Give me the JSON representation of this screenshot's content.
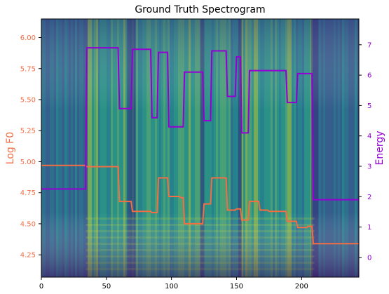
{
  "chart_data": {
    "type": "line",
    "title": "Ground Truth Spectrogram",
    "background": "spectrogram heatmap (viridis colormap)",
    "x_axis": {
      "ticks": [
        0,
        50,
        100,
        150,
        200
      ],
      "xlim": [
        0,
        244
      ]
    },
    "y_left": {
      "label": "Log F0",
      "color": "#f46d43",
      "ticks": [
        "4.25",
        "4.50",
        "4.75",
        "5.00",
        "5.25",
        "5.50",
        "5.75",
        "6.00"
      ],
      "ylim": [
        4.07,
        6.15
      ]
    },
    "y_right": {
      "label": "Energy",
      "color": "#9400d3",
      "ticks": [
        "0",
        "1",
        "2",
        "3",
        "4",
        "5",
        "6",
        "7"
      ],
      "ylim": [
        -0.65,
        7.85
      ]
    },
    "series": [
      {
        "axis": "left",
        "color": "#f46d43",
        "x": [
          0,
          34,
          35,
          59,
          60,
          69,
          70,
          84,
          85,
          89,
          90,
          97,
          98,
          106,
          107,
          109,
          110,
          124,
          125,
          130,
          131,
          142,
          143,
          149,
          150,
          153,
          154,
          159,
          160,
          167,
          168,
          174,
          175,
          188,
          189,
          196,
          197,
          204,
          205,
          208,
          209,
          244
        ],
        "values": [
          4.97,
          4.97,
          4.96,
          4.96,
          4.68,
          4.68,
          4.6,
          4.6,
          4.59,
          4.59,
          4.87,
          4.87,
          4.72,
          4.72,
          4.71,
          4.71,
          4.5,
          4.5,
          4.66,
          4.66,
          4.87,
          4.87,
          4.61,
          4.61,
          4.62,
          4.62,
          4.53,
          4.53,
          4.68,
          4.68,
          4.61,
          4.61,
          4.6,
          4.6,
          4.52,
          4.52,
          4.47,
          4.47,
          4.48,
          4.48,
          4.34,
          4.34
        ]
      },
      {
        "axis": "right",
        "color": "#9400d3",
        "x": [
          0,
          34,
          35,
          59,
          60,
          69,
          70,
          84,
          85,
          89,
          90,
          97,
          98,
          106,
          107,
          109,
          110,
          124,
          125,
          130,
          131,
          142,
          143,
          149,
          150,
          153,
          154,
          159,
          160,
          167,
          168,
          174,
          175,
          188,
          189,
          196,
          197,
          204,
          205,
          208,
          209,
          244
        ],
        "values": [
          2.25,
          2.25,
          6.9,
          6.9,
          4.9,
          4.9,
          6.85,
          6.85,
          4.6,
          4.6,
          6.75,
          6.75,
          4.3,
          4.3,
          4.3,
          4.3,
          6.1,
          6.1,
          4.5,
          4.5,
          6.8,
          6.8,
          5.3,
          5.3,
          6.6,
          6.6,
          4.1,
          4.1,
          6.15,
          6.15,
          6.15,
          6.15,
          6.15,
          6.15,
          5.1,
          5.1,
          6.05,
          6.05,
          6.05,
          6.05,
          1.9,
          1.9
        ]
      }
    ]
  }
}
